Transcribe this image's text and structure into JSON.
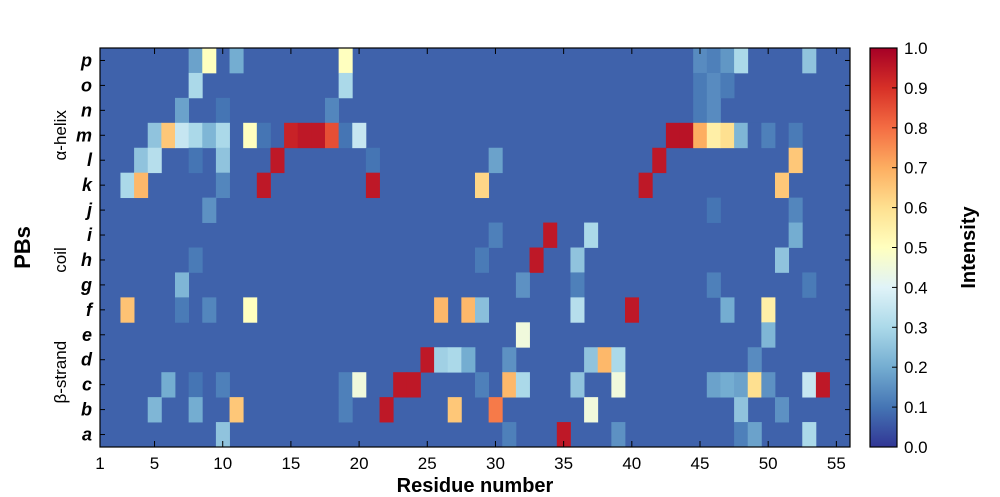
{
  "chart_data": {
    "type": "heatmap",
    "xlabel": "Residue number",
    "ylabel": "PBs",
    "colorbar_label": "Intensity",
    "x_range": [
      1,
      56
    ],
    "x_ticks": [
      1,
      5,
      10,
      15,
      20,
      25,
      30,
      35,
      40,
      45,
      50,
      55
    ],
    "colorbar_range": [
      0.0,
      1.0
    ],
    "colorbar_ticks": [
      "0.0",
      "0.1",
      "0.2",
      "0.3",
      "0.4",
      "0.5",
      "0.6",
      "0.7",
      "0.8",
      "0.9",
      "1.0"
    ],
    "colormap": "RdYlBu_r",
    "background_value": 0.07,
    "rows": [
      "p",
      "o",
      "n",
      "m",
      "l",
      "k",
      "j",
      "i",
      "h",
      "g",
      "f",
      "e",
      "d",
      "c",
      "b",
      "a"
    ],
    "groups": [
      {
        "label": "α-helix",
        "rows": [
          "n",
          "m",
          "l"
        ]
      },
      {
        "label": "coil",
        "rows": [
          "i",
          "h",
          "g"
        ]
      },
      {
        "label": "β-strand",
        "rows": [
          "e",
          "d",
          "c",
          "b"
        ]
      }
    ],
    "cells": {
      "p": [
        [
          8,
          0.18
        ],
        [
          9,
          0.5
        ],
        [
          11,
          0.2
        ],
        [
          19,
          0.5
        ],
        [
          45,
          0.14
        ],
        [
          46,
          0.12
        ],
        [
          47,
          0.16
        ],
        [
          48,
          0.3
        ],
        [
          53,
          0.25
        ]
      ],
      "o": [
        [
          8,
          0.3
        ],
        [
          19,
          0.3
        ],
        [
          45,
          0.11
        ],
        [
          46,
          0.14
        ],
        [
          47,
          0.11
        ]
      ],
      "n": [
        [
          7,
          0.18
        ],
        [
          10,
          0.1
        ],
        [
          18,
          0.13
        ],
        [
          45,
          0.11
        ],
        [
          46,
          0.14
        ]
      ],
      "m": [
        [
          5,
          0.25
        ],
        [
          6,
          0.65
        ],
        [
          7,
          0.35
        ],
        [
          8,
          0.3
        ],
        [
          9,
          0.22
        ],
        [
          10,
          0.3
        ],
        [
          12,
          0.5
        ],
        [
          13,
          0.1
        ],
        [
          15,
          0.93
        ],
        [
          16,
          0.95
        ],
        [
          17,
          0.95
        ],
        [
          18,
          0.85
        ],
        [
          19,
          0.1
        ],
        [
          20,
          0.35
        ],
        [
          43,
          0.96
        ],
        [
          44,
          0.96
        ],
        [
          45,
          0.7
        ],
        [
          46,
          0.55
        ],
        [
          47,
          0.6
        ],
        [
          48,
          0.22
        ],
        [
          49,
          0.07
        ],
        [
          50,
          0.12
        ],
        [
          52,
          0.11
        ]
      ],
      "l": [
        [
          4,
          0.25
        ],
        [
          5,
          0.32
        ],
        [
          8,
          0.1
        ],
        [
          10,
          0.25
        ],
        [
          14,
          0.95
        ],
        [
          21,
          0.1
        ],
        [
          30,
          0.18
        ],
        [
          42,
          0.95
        ],
        [
          52,
          0.65
        ]
      ],
      "k": [
        [
          3,
          0.3
        ],
        [
          4,
          0.68
        ],
        [
          10,
          0.13
        ],
        [
          13,
          0.95
        ],
        [
          21,
          0.95
        ],
        [
          29,
          0.62
        ],
        [
          41,
          0.95
        ],
        [
          51,
          0.65
        ]
      ],
      "j": [
        [
          9,
          0.15
        ],
        [
          46,
          0.1
        ],
        [
          52,
          0.13
        ]
      ],
      "i": [
        [
          30,
          0.12
        ],
        [
          34,
          0.95
        ],
        [
          37,
          0.3
        ],
        [
          52,
          0.2
        ]
      ],
      "h": [
        [
          8,
          0.11
        ],
        [
          29,
          0.11
        ],
        [
          33,
          0.95
        ],
        [
          36,
          0.25
        ],
        [
          51,
          0.25
        ]
      ],
      "g": [
        [
          7,
          0.22
        ],
        [
          32,
          0.15
        ],
        [
          36,
          0.12
        ],
        [
          46,
          0.12
        ],
        [
          53,
          0.11
        ]
      ],
      "f": [
        [
          3,
          0.66
        ],
        [
          7,
          0.11
        ],
        [
          9,
          0.13
        ],
        [
          12,
          0.5
        ],
        [
          26,
          0.68
        ],
        [
          28,
          0.68
        ],
        [
          29,
          0.24
        ],
        [
          36,
          0.32
        ],
        [
          40,
          0.95
        ],
        [
          47,
          0.2
        ],
        [
          50,
          0.55
        ]
      ],
      "e": [
        [
          32,
          0.45
        ],
        [
          50,
          0.22
        ]
      ],
      "d": [
        [
          25,
          0.95
        ],
        [
          26,
          0.28
        ],
        [
          27,
          0.3
        ],
        [
          28,
          0.2
        ],
        [
          31,
          0.15
        ],
        [
          37,
          0.25
        ],
        [
          38,
          0.68
        ],
        [
          39,
          0.3
        ],
        [
          49,
          0.14
        ]
      ],
      "c": [
        [
          6,
          0.2
        ],
        [
          8,
          0.1
        ],
        [
          10,
          0.12
        ],
        [
          19,
          0.12
        ],
        [
          20,
          0.45
        ],
        [
          23,
          0.95
        ],
        [
          24,
          0.95
        ],
        [
          29,
          0.12
        ],
        [
          31,
          0.68
        ],
        [
          32,
          0.3
        ],
        [
          36,
          0.25
        ],
        [
          39,
          0.45
        ],
        [
          46,
          0.18
        ],
        [
          47,
          0.2
        ],
        [
          48,
          0.18
        ],
        [
          49,
          0.6
        ],
        [
          50,
          0.15
        ],
        [
          53,
          0.35
        ],
        [
          54,
          0.95
        ]
      ],
      "b": [
        [
          5,
          0.22
        ],
        [
          8,
          0.2
        ],
        [
          11,
          0.65
        ],
        [
          19,
          0.12
        ],
        [
          22,
          0.95
        ],
        [
          27,
          0.65
        ],
        [
          30,
          0.78
        ],
        [
          37,
          0.45
        ],
        [
          48,
          0.25
        ],
        [
          51,
          0.15
        ]
      ],
      "a": [
        [
          10,
          0.25
        ],
        [
          31,
          0.12
        ],
        [
          35,
          0.95
        ],
        [
          39,
          0.15
        ],
        [
          48,
          0.12
        ],
        [
          49,
          0.18
        ],
        [
          53,
          0.3
        ]
      ]
    }
  }
}
